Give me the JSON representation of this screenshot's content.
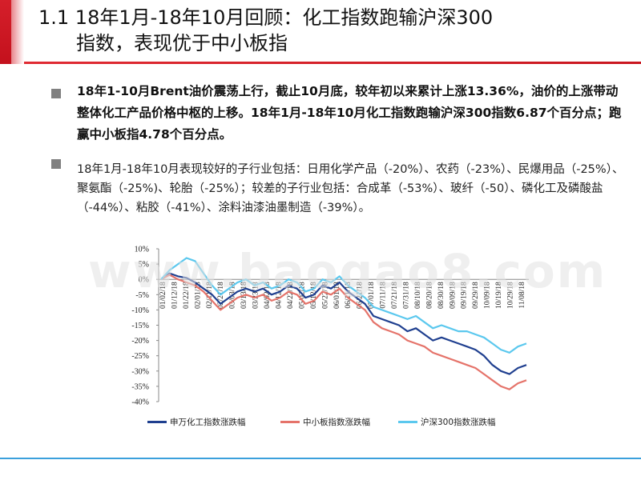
{
  "header": {
    "title_line1": "1.1 18年1月-18年10月回顾：化工指数跑输沪深300",
    "title_line2": "指数，表现优于中小板指"
  },
  "body": {
    "paragraph1": "18年1-10月Brent油价震荡上行，截止10月底，较年初以来累计上涨13.36%，油价的上涨带动整体化工产品价格中枢的上移。18年1月-18年10月化工指数跑输沪深300指数6.87个百分点；跑赢中小板指4.78个百分点。",
    "paragraph2": "18年1月-18年10月表现较好的子行业包括：日用化学产品（-20%）、农药（-23%）、民爆用品（-25%）、聚氨酯（-25%)、轮胎（-25%）；较差的子行业包括：合成革（-53%）、玻纤（-50）、磷化工及磷酸盐（-44%）、粘胶（-41%）、涂料油漆油墨制造（-39%）。"
  },
  "watermark": "www.baogao8.com",
  "colors": {
    "brand_red": "#d51f2a",
    "series_chem": "#1f3f8f",
    "series_sme": "#e5736a",
    "series_hs300": "#5bc8ee"
  },
  "chart_data": {
    "type": "line",
    "title": "",
    "xlabel": "",
    "ylabel": "",
    "ylim": [
      -40,
      10
    ],
    "yticks": [
      "10%",
      "5%",
      "0%",
      "-5%",
      "-10%",
      "-15%",
      "-20%",
      "-25%",
      "-30%",
      "-35%",
      "-40%"
    ],
    "xticks": [
      "01/02/18",
      "01/12/18",
      "01/22/18",
      "02/01/18",
      "02/11/18",
      "02/21/18",
      "03/03/18",
      "03/13/18",
      "03/23/18",
      "04/02/18",
      "04/12/18",
      "04/22/18",
      "05/02/18",
      "05/12/18",
      "05/22/18",
      "06/01/18",
      "06/11/18",
      "06/21/18",
      "07/01/18",
      "07/11/18",
      "07/21/18",
      "07/31/18",
      "08/10/18",
      "08/20/18",
      "08/30/18",
      "09/09/18",
      "09/19/18",
      "09/29/18",
      "10/09/18",
      "10/19/18",
      "10/29/18",
      "11/08/18"
    ],
    "legend_position": "bottom",
    "series": [
      {
        "name": "申万化工指数涨跌幅",
        "color": "#1f3f8f",
        "values": [
          0,
          2,
          1,
          0.5,
          -1,
          -3,
          -5,
          -8,
          -6,
          -4,
          -3,
          -4,
          -3,
          -5,
          -4,
          -2,
          -3,
          -6,
          -5,
          -2,
          -3,
          -1,
          -4,
          -6,
          -8,
          -12,
          -13,
          -14,
          -15,
          -17,
          -16,
          -18,
          -20,
          -19,
          -20,
          -21,
          -22,
          -23,
          -25,
          -28,
          -30,
          -31,
          -29,
          -28
        ]
      },
      {
        "name": "中小板指数涨跌幅",
        "color": "#e5736a",
        "values": [
          0,
          1.5,
          0,
          -1,
          -2,
          -4,
          -7,
          -10,
          -8,
          -6,
          -5,
          -6,
          -5,
          -7,
          -6,
          -4,
          -5,
          -8,
          -7,
          -4,
          -5,
          -3,
          -6,
          -8,
          -10,
          -14,
          -16,
          -17,
          -18,
          -20,
          -21,
          -22,
          -24,
          -25,
          -26,
          -27,
          -28,
          -29,
          -31,
          -33,
          -35,
          -36,
          -34,
          -33
        ]
      },
      {
        "name": "沪深300指数涨跌幅",
        "color": "#5bc8ee",
        "values": [
          0,
          3,
          5,
          7,
          6,
          2,
          -2,
          -5,
          -3,
          -1,
          0,
          -2,
          -1,
          -3,
          -2,
          0,
          -1,
          -4,
          -3,
          0,
          -1,
          1,
          -2,
          -4,
          -6,
          -9,
          -10,
          -11,
          -12,
          -13,
          -12,
          -14,
          -16,
          -15,
          -16,
          -17,
          -17,
          -18,
          -19,
          -21,
          -23,
          -24,
          -22,
          -21
        ]
      }
    ]
  }
}
